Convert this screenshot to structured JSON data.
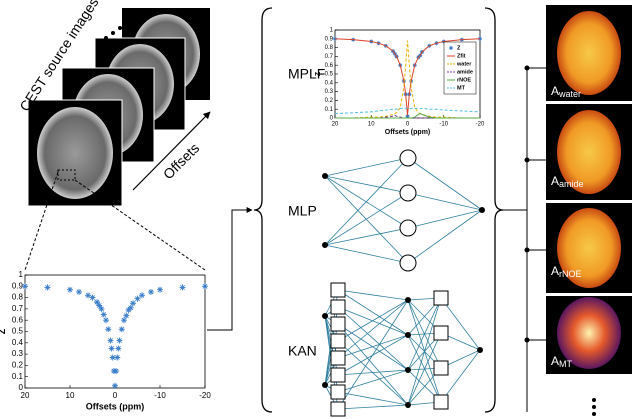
{
  "source_images_label": "CEST source images",
  "offsets_label": "Offsets",
  "methods": [
    "MPLF",
    "MLP",
    "KAN"
  ],
  "maps": [
    {
      "base": "A",
      "sub": "water"
    },
    {
      "base": "A",
      "sub": "amide"
    },
    {
      "base": "A",
      "sub": "rNOE"
    },
    {
      "base": "A",
      "sub": "MT"
    }
  ],
  "chart_data": [
    {
      "type": "scatter",
      "xlabel": "Offsets (ppm)",
      "ylabel": "Z",
      "x": [
        20,
        15,
        10,
        8,
        6,
        5,
        4,
        3.5,
        3,
        2.5,
        2,
        1.5,
        1,
        0.75,
        0.5,
        0.25,
        0,
        -0.25,
        -0.5,
        -0.75,
        -1,
        -1.5,
        -2,
        -2.5,
        -3,
        -3.5,
        -4,
        -5,
        -6,
        -8,
        -10,
        -15,
        -20
      ],
      "values": [
        0.9,
        0.89,
        0.87,
        0.85,
        0.82,
        0.8,
        0.76,
        0.73,
        0.7,
        0.65,
        0.6,
        0.52,
        0.42,
        0.35,
        0.27,
        0.15,
        0.02,
        0.15,
        0.27,
        0.35,
        0.42,
        0.52,
        0.6,
        0.64,
        0.69,
        0.71,
        0.75,
        0.79,
        0.82,
        0.85,
        0.87,
        0.89,
        0.9
      ],
      "color": "#3a7dc9",
      "xlim": [
        20,
        -20
      ],
      "xticks": [
        20,
        10,
        0,
        -10,
        -20
      ],
      "ylim": [
        0,
        1
      ],
      "yticks": [
        0,
        0.1,
        0.2,
        0.3,
        0.4,
        0.5,
        0.6,
        0.7,
        0.8,
        0.9,
        1
      ]
    },
    {
      "type": "line",
      "xlabel": "Offsets (ppm)",
      "ylabel": "Z",
      "x": [
        20,
        15,
        10,
        8,
        6,
        4,
        3.5,
        3,
        2,
        1,
        0.5,
        0,
        -0.5,
        -1,
        -2,
        -3,
        -3.5,
        -4,
        -6,
        -8,
        -10,
        -15,
        -20
      ],
      "series": [
        {
          "name": "Z",
          "color": "#3a7dc9",
          "style": "markers",
          "values": [
            0.9,
            0.89,
            0.87,
            0.85,
            0.82,
            0.76,
            0.73,
            0.7,
            0.6,
            0.42,
            0.27,
            0.02,
            0.27,
            0.42,
            0.6,
            0.69,
            0.71,
            0.75,
            0.82,
            0.85,
            0.87,
            0.89,
            0.9
          ]
        },
        {
          "name": "Zfit",
          "color": "#d9412b",
          "style": "solid",
          "values": [
            0.9,
            0.89,
            0.87,
            0.85,
            0.82,
            0.76,
            0.73,
            0.7,
            0.6,
            0.42,
            0.27,
            0.03,
            0.27,
            0.42,
            0.6,
            0.69,
            0.71,
            0.75,
            0.82,
            0.85,
            0.87,
            0.89,
            0.9
          ]
        },
        {
          "name": "water",
          "color": "#e8b100",
          "style": "dashed",
          "values": [
            0,
            0,
            0.01,
            0.01,
            0.02,
            0.04,
            0.05,
            0.06,
            0.12,
            0.35,
            0.6,
            0.88,
            0.6,
            0.35,
            0.12,
            0.06,
            0.05,
            0.04,
            0.02,
            0.01,
            0.01,
            0,
            0
          ]
        },
        {
          "name": "amide",
          "color": "#7e3d96",
          "style": "dashed",
          "values": [
            0,
            0,
            0,
            0,
            0.01,
            0.02,
            0.03,
            0.02,
            0.01,
            0,
            0,
            0,
            0,
            0,
            0,
            0,
            0,
            0,
            0,
            0,
            0,
            0,
            0
          ]
        },
        {
          "name": "rNOE",
          "color": "#58a942",
          "style": "solid",
          "values": [
            0,
            0,
            0,
            0,
            0,
            0,
            0,
            0,
            0,
            0,
            0,
            0,
            0,
            0,
            0.01,
            0.04,
            0.05,
            0.04,
            0.01,
            0,
            0,
            0,
            0
          ]
        },
        {
          "name": "MT",
          "color": "#4fbfe0",
          "style": "dashed",
          "values": [
            0.05,
            0.06,
            0.07,
            0.08,
            0.09,
            0.1,
            0.1,
            0.1,
            0.11,
            0.11,
            0.11,
            0.11,
            0.11,
            0.11,
            0.11,
            0.11,
            0.11,
            0.11,
            0.1,
            0.1,
            0.09,
            0.08,
            0.07
          ]
        }
      ],
      "legend": "right",
      "xlim": [
        20,
        -20
      ],
      "xticks": [
        20,
        10,
        0,
        -10,
        -20
      ],
      "ylim": [
        0,
        1
      ],
      "yticks": [
        0,
        0.1,
        0.2,
        0.3,
        0.4,
        0.5,
        0.6,
        0.7,
        0.8,
        0.9,
        1
      ]
    }
  ]
}
